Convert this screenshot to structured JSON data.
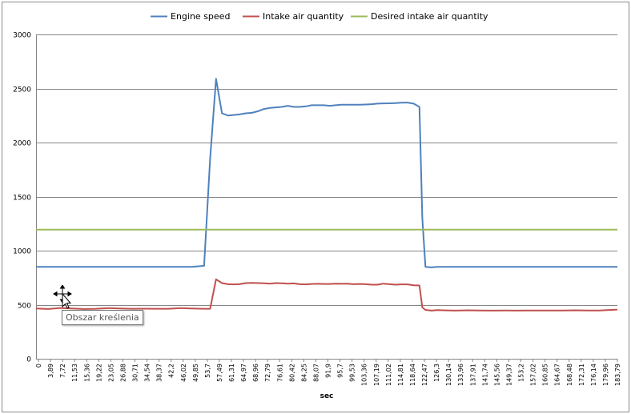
{
  "chart_data": {
    "type": "line",
    "xlabel": "sec",
    "ylabel": "",
    "ylim": [
      0,
      3000
    ],
    "yticks": [
      0,
      500,
      1000,
      1500,
      2000,
      2500,
      3000
    ],
    "grid": true,
    "legend_position": "top",
    "x_tick_labels": [
      "0",
      "3,89",
      "7,72",
      "11,53",
      "15,36",
      "19,22",
      "23,05",
      "26,88",
      "30,71",
      "34,54",
      "38,37",
      "42,2",
      "46,02",
      "49,85",
      "53,7",
      "57,49",
      "61,31",
      "64,97",
      "68,96",
      "72,79",
      "76,61",
      "80,42",
      "84,25",
      "88,07",
      "91,9",
      "95,7",
      "99,53",
      "103,36",
      "107,19",
      "111,02",
      "114,81",
      "118,64",
      "122,47",
      "126,3",
      "130,14",
      "133,96",
      "137,91",
      "141,74",
      "145,56",
      "149,37",
      "153,2",
      "157,02",
      "160,85",
      "164,67",
      "168,48",
      "172,31",
      "176,14",
      "179,96",
      "183,79"
    ],
    "x": [
      0,
      3.89,
      7.72,
      11.53,
      15.36,
      19.22,
      23.05,
      26.88,
      30.71,
      34.54,
      38.37,
      42.2,
      46.02,
      49.85,
      53.7,
      55.6,
      57.49,
      59.4,
      61.31,
      63.1,
      64.97,
      66.97,
      68.96,
      70.9,
      72.79,
      74.7,
      76.61,
      78.5,
      80.42,
      82.3,
      84.25,
      86.2,
      88.07,
      90.0,
      91.9,
      93.8,
      95.7,
      97.6,
      99.53,
      101.4,
      103.36,
      105.3,
      107.19,
      109.1,
      111.02,
      112.9,
      114.81,
      116.7,
      118.64,
      120.6,
      122.47,
      123.4,
      124.4,
      126.3,
      128.2,
      130.14,
      133.96,
      137.91,
      141.74,
      145.56,
      149.37,
      153.2,
      157.02,
      160.85,
      164.67,
      168.48,
      172.31,
      176.14,
      179.96,
      183.79,
      185.7
    ],
    "series": [
      {
        "name": "Engine speed",
        "color": "#4f81bd",
        "values": [
          850,
          850,
          850,
          850,
          850,
          850,
          850,
          850,
          850,
          850,
          850,
          850,
          850,
          850,
          860,
          1850,
          2590,
          2270,
          2250,
          2255,
          2260,
          2270,
          2275,
          2290,
          2310,
          2320,
          2325,
          2330,
          2340,
          2330,
          2330,
          2335,
          2345,
          2345,
          2345,
          2340,
          2345,
          2350,
          2350,
          2350,
          2350,
          2352,
          2355,
          2360,
          2362,
          2363,
          2365,
          2368,
          2370,
          2360,
          2330,
          1300,
          850,
          845,
          850,
          850,
          850,
          850,
          850,
          850,
          850,
          850,
          850,
          850,
          850,
          850,
          850,
          850,
          850,
          850,
          850
        ]
      },
      {
        "name": "Intake air quantity",
        "color": "#c0504d",
        "values": [
          465,
          460,
          470,
          465,
          460,
          462,
          468,
          465,
          462,
          463,
          462,
          462,
          468,
          465,
          462,
          462,
          735,
          700,
          690,
          688,
          690,
          700,
          702,
          700,
          698,
          695,
          700,
          698,
          695,
          697,
          690,
          688,
          692,
          693,
          692,
          692,
          694,
          693,
          695,
          690,
          692,
          690,
          685,
          685,
          695,
          690,
          685,
          688,
          688,
          680,
          678,
          475,
          452,
          445,
          450,
          448,
          445,
          448,
          446,
          445,
          447,
          445,
          447,
          446,
          447,
          447,
          448,
          446,
          447,
          452,
          455
        ]
      },
      {
        "name": "Desired intake air quantity",
        "color": "#9bbb59",
        "values": [
          1195,
          1195,
          1195,
          1195,
          1195,
          1195,
          1195,
          1195,
          1195,
          1195,
          1195,
          1195,
          1195,
          1195,
          1195,
          1195,
          1195,
          1195,
          1195,
          1195,
          1195,
          1195,
          1195,
          1195,
          1195,
          1195,
          1195,
          1195,
          1195,
          1195,
          1195,
          1195,
          1195,
          1195,
          1195,
          1195,
          1195,
          1195,
          1195,
          1195,
          1195,
          1195,
          1195,
          1195,
          1195,
          1195,
          1195,
          1195,
          1195,
          1195,
          1195,
          1195,
          1195,
          1195,
          1195,
          1195,
          1195,
          1195,
          1195,
          1195,
          1195,
          1195,
          1195,
          1195,
          1195,
          1195,
          1195,
          1195,
          1195,
          1195,
          1195
        ]
      }
    ]
  },
  "tooltip": {
    "text": "Obszar kreślenia"
  },
  "cursor": {
    "icon": "move-cursor-icon"
  }
}
